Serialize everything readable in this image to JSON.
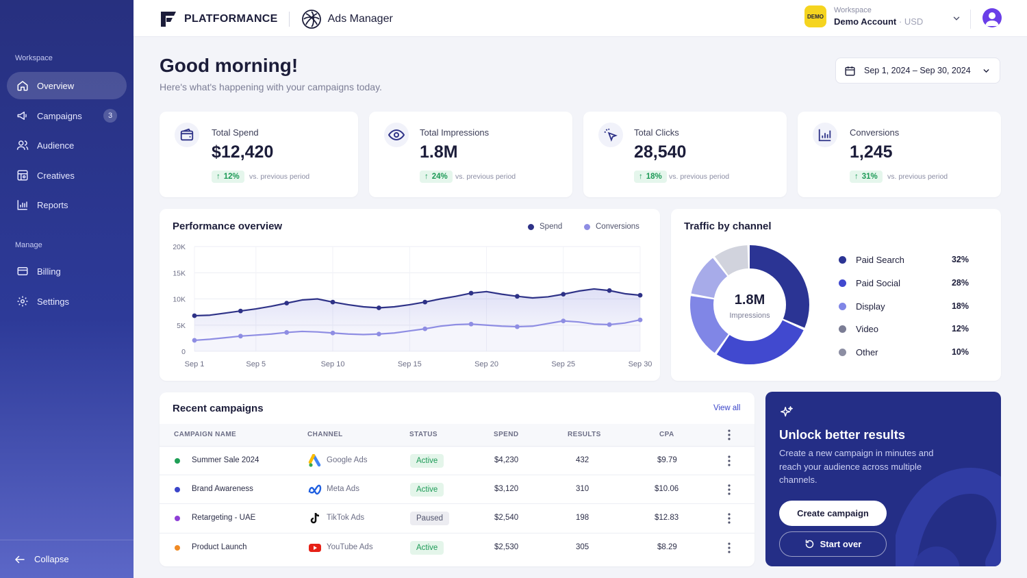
{
  "sidebar": {
    "section_workspace": "Workspace",
    "section_manage": "Manage",
    "items": [
      {
        "label": "Overview",
        "icon": "home-icon"
      },
      {
        "label": "Campaigns",
        "icon": "megaphone-icon",
        "badge": "3"
      },
      {
        "label": "Audience",
        "icon": "users-icon"
      },
      {
        "label": "Creatives",
        "icon": "creatives-icon"
      },
      {
        "label": "Reports",
        "icon": "bar-chart-icon"
      }
    ],
    "manage_items": [
      {
        "label": "Billing",
        "icon": "wallet-icon"
      },
      {
        "label": "Settings",
        "icon": "gear-icon"
      }
    ],
    "collapse_label": "Collapse"
  },
  "topbar": {
    "brand": "PLATFORMANCE",
    "product": "Ads Manager",
    "workspace_badge": "DEMO",
    "workspace_label": "Workspace",
    "workspace_name": "Demo Account",
    "workspace_sep": "·",
    "currency": "USD"
  },
  "header": {
    "greeting": "Good morning!",
    "subtitle": "Here's what's happening with your campaigns today.",
    "date_range": "Sep 1, 2024 – Sep 30, 2024"
  },
  "kpis": [
    {
      "label": "Total Spend",
      "value": "$12,420",
      "change": "12%",
      "vs": "vs. previous period",
      "icon": "wallet-icon"
    },
    {
      "label": "Total Impressions",
      "value": "1.8M",
      "change": "24%",
      "vs": "vs. previous period",
      "icon": "eye-icon"
    },
    {
      "label": "Total Clicks",
      "value": "28,540",
      "change": "18%",
      "vs": "vs. previous period",
      "icon": "cursor-click-icon"
    },
    {
      "label": "Conversions",
      "value": "1,245",
      "change": "31%",
      "vs": "vs. previous period",
      "icon": "bar-chart-icon"
    }
  ],
  "colors": {
    "spend": "#2e3287",
    "conversions": "#8e8de3",
    "positive": "#1c9a56",
    "active_bg": "#e4f5ea",
    "paused_bg": "#ececf1"
  },
  "performance": {
    "title": "Performance overview",
    "legend_spend": "Spend",
    "legend_conversions": "Conversions"
  },
  "traffic": {
    "title": "Traffic by channel",
    "center_value": "1.8M",
    "center_label": "Impressions",
    "channels": [
      {
        "name": "Paid Search",
        "pct": "32%",
        "value": 32,
        "color": "#2b3494"
      },
      {
        "name": "Paid Social",
        "pct": "28%",
        "value": 28,
        "color": "#4149cf"
      },
      {
        "name": "Display",
        "pct": "18%",
        "value": 18,
        "color": "#8086e6"
      },
      {
        "name": "Video",
        "pct": "12%",
        "value": 12,
        "color": "#a7abe9"
      },
      {
        "name": "Other",
        "pct": "10%",
        "value": 10,
        "color": "#d1d3dd"
      }
    ]
  },
  "campaigns": {
    "title": "Recent campaigns",
    "view_all": "View all",
    "columns": [
      "CAMPAIGN NAME",
      "CHANNEL",
      "STATUS",
      "SPEND",
      "RESULTS",
      "CPA"
    ],
    "rows": [
      {
        "name": "Summer Sale 2024",
        "dot": "#1f9f56",
        "channel": "Google Ads",
        "icon": "google-ads-icon",
        "status": "Active",
        "spend": "$4,230",
        "results": "432",
        "cpa": "$9.79"
      },
      {
        "name": "Brand Awareness",
        "dot": "#3b45c9",
        "channel": "Meta Ads",
        "icon": "meta-icon",
        "status": "Active",
        "spend": "$3,120",
        "results": "310",
        "cpa": "$10.06"
      },
      {
        "name": "Retargeting - UAE",
        "dot": "#8e3fd6",
        "channel": "TikTok Ads",
        "icon": "tiktok-icon",
        "status": "Paused",
        "spend": "$2,540",
        "results": "198",
        "cpa": "$12.83"
      },
      {
        "name": "Product Launch",
        "dot": "#f08a24",
        "channel": "YouTube Ads",
        "icon": "youtube-icon",
        "status": "Active",
        "spend": "$2,530",
        "results": "305",
        "cpa": "$8.29"
      }
    ]
  },
  "promo": {
    "title": "Unlock better results",
    "text": "Create a new campaign in minutes and reach your audience across multiple channels.",
    "primary_button": "Create campaign",
    "secondary_button": "Start over"
  },
  "chart_data": {
    "type": "line",
    "title": "Performance overview",
    "x": [
      "Sep 1",
      "Sep 2",
      "Sep 3",
      "Sep 4",
      "Sep 5",
      "Sep 6",
      "Sep 7",
      "Sep 8",
      "Sep 9",
      "Sep 10",
      "Sep 11",
      "Sep 12",
      "Sep 13",
      "Sep 14",
      "Sep 15",
      "Sep 16",
      "Sep 17",
      "Sep 18",
      "Sep 19",
      "Sep 20",
      "Sep 21",
      "Sep 22",
      "Sep 23",
      "Sep 24",
      "Sep 25",
      "Sep 26",
      "Sep 27",
      "Sep 28",
      "Sep 29",
      "Sep 30"
    ],
    "x_ticks": [
      "Sep 1",
      "Sep 5",
      "Sep 10",
      "Sep 15",
      "Sep 20",
      "Sep 25",
      "Sep 30"
    ],
    "y_ticks": [
      "0",
      "5K",
      "10K",
      "15K",
      "20K"
    ],
    "ylim": [
      0,
      20000
    ],
    "grid": true,
    "legend": "top-right",
    "series": [
      {
        "name": "Spend",
        "color": "#2e3287",
        "values": [
          6800,
          6900,
          7300,
          7700,
          8100,
          8600,
          9200,
          9800,
          10000,
          9400,
          8900,
          8500,
          8300,
          8500,
          8900,
          9400,
          10000,
          10500,
          11100,
          11400,
          10900,
          10500,
          10200,
          10400,
          10900,
          11500,
          11900,
          11600,
          11000,
          10700
        ]
      },
      {
        "name": "Conversions",
        "color": "#8e8de3",
        "values": [
          2100,
          2300,
          2600,
          2900,
          3100,
          3300,
          3600,
          3800,
          3700,
          3500,
          3300,
          3200,
          3300,
          3500,
          3900,
          4300,
          4800,
          5100,
          5200,
          5000,
          4800,
          4700,
          4800,
          5300,
          5800,
          5600,
          5200,
          5100,
          5400,
          6000
        ]
      }
    ]
  }
}
